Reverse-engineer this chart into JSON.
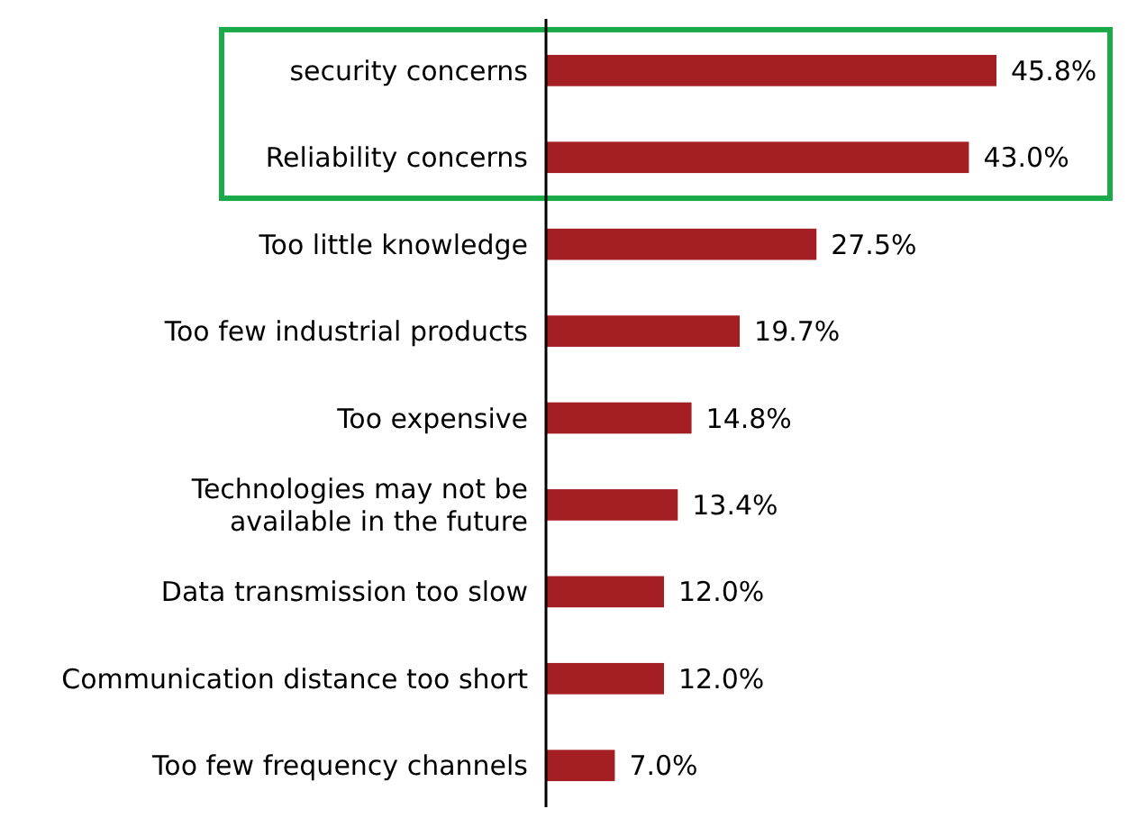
{
  "chart_data": {
    "type": "bar",
    "orientation": "horizontal",
    "categories": [
      "security concerns",
      "Reliability concerns",
      "Too little knowledge",
      "Too few industrial products",
      "Too expensive",
      "Technologies may not be available in the future",
      "Data transmission too slow",
      "Communication distance too short",
      "Too few frequency channels"
    ],
    "values": [
      45.8,
      43.0,
      27.5,
      19.7,
      14.8,
      13.4,
      12.0,
      12.0,
      7.0
    ],
    "value_labels": [
      "45.8%",
      "43.0%",
      "27.5%",
      "19.7%",
      "14.8%",
      "13.4%",
      "12.0%",
      "12.0%",
      "7.0%"
    ],
    "color": "#a31f24"
  }
}
